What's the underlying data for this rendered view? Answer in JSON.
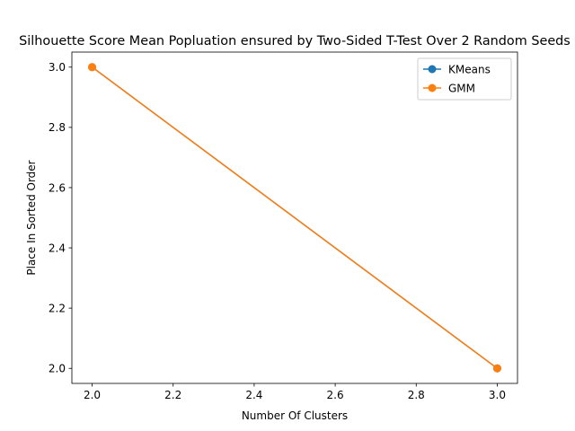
{
  "chart_data": {
    "type": "line",
    "title": "Silhouette Score Mean Popluation ensured by Two-Sided T-Test Over 2 Random Seeds",
    "xlabel": "Number Of Clusters",
    "ylabel": "Place In Sorted Order",
    "xlim": [
      1.95,
      3.05
    ],
    "ylim": [
      1.95,
      3.05
    ],
    "x_ticks": [
      2.0,
      2.2,
      2.4,
      2.6,
      2.8,
      3.0
    ],
    "x_tick_labels": [
      "2.0",
      "2.2",
      "2.4",
      "2.6",
      "2.8",
      "3.0"
    ],
    "y_ticks": [
      2.0,
      2.2,
      2.4,
      2.6,
      2.8,
      3.0
    ],
    "y_tick_labels": [
      "2.0",
      "2.2",
      "2.4",
      "2.6",
      "2.8",
      "3.0"
    ],
    "grid": false,
    "legend_position": "upper right",
    "series": [
      {
        "name": "KMeans",
        "color": "#1f77b4",
        "marker": "circle",
        "x": [
          2,
          3
        ],
        "y": [
          3,
          2
        ]
      },
      {
        "name": "GMM",
        "color": "#ff7f0e",
        "marker": "circle",
        "x": [
          2,
          3
        ],
        "y": [
          3,
          2
        ]
      }
    ]
  }
}
